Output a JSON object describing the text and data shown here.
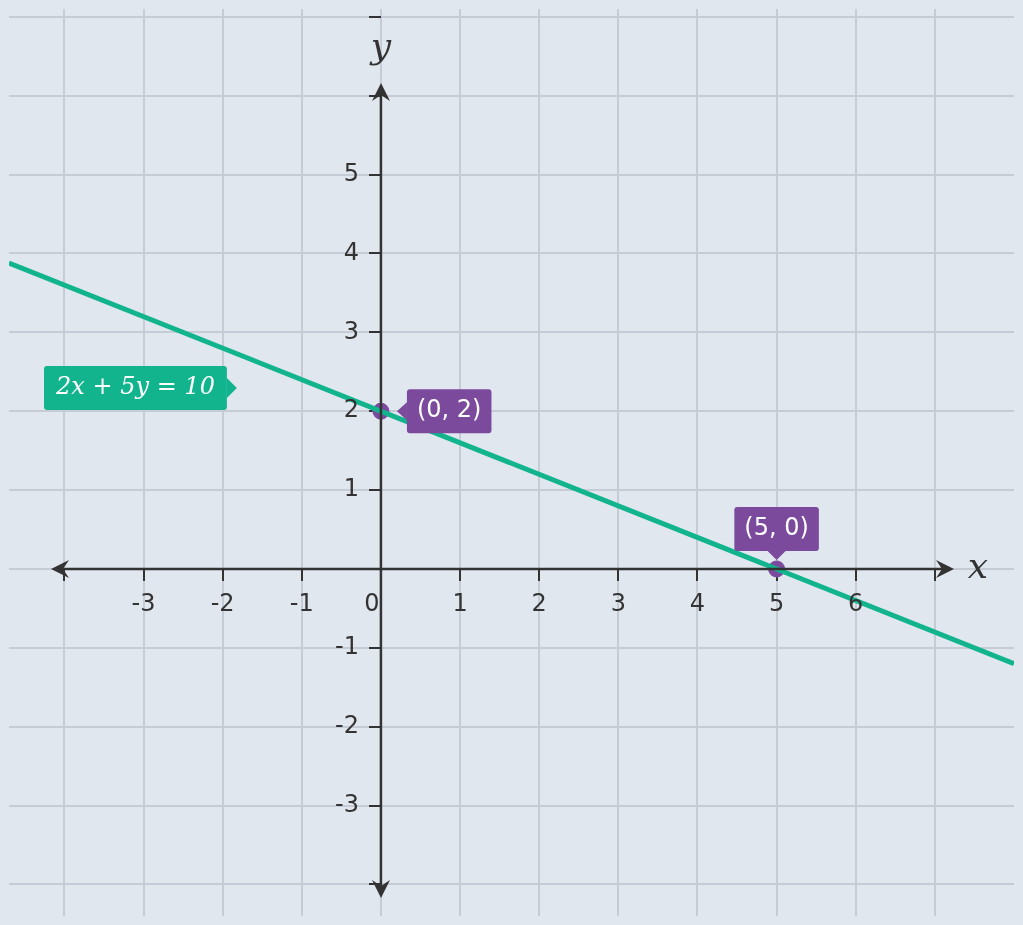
{
  "chart_data": {
    "type": "line",
    "xlabel": "x",
    "ylabel": "y",
    "xlim": [
      -4.7,
      8
    ],
    "ylim": [
      -4.4,
      7.1
    ],
    "xticks": [
      {
        "value": -4,
        "label": null
      },
      -3,
      -2,
      -1,
      0,
      1,
      2,
      3,
      4,
      5,
      6,
      {
        "value": 7,
        "label": null
      }
    ],
    "yticks": [
      {
        "value": -4,
        "label": null
      },
      -3,
      -2,
      -1,
      {
        "value": 0,
        "label": null
      },
      1,
      2,
      3,
      4,
      5,
      {
        "value": 6,
        "label": null
      },
      {
        "value": 7,
        "label": null
      }
    ],
    "grid": true,
    "marker": "circle",
    "series": [
      {
        "name": "2x + 5y = 10",
        "marker": "none",
        "color": "#12b48e",
        "x": [
          -4.7,
          8
        ],
        "values": [
          3.88,
          -1.2
        ]
      },
      {
        "type": "scatter",
        "color": "#7b4a9c",
        "x": [
          0,
          5
        ],
        "values": [
          2,
          0
        ],
        "value_labels": [
          "(0, 2)",
          "(5, 0)"
        ]
      }
    ]
  }
}
